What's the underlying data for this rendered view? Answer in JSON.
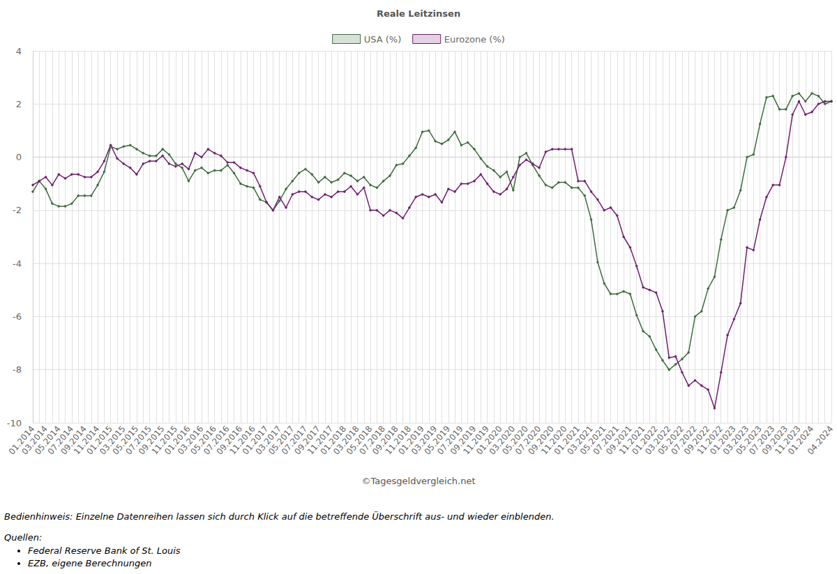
{
  "chart_data": {
    "type": "line",
    "title": "Reale Leitzinsen",
    "source_note": "©Tagesgeldvergleich.net",
    "categories": [
      "01.2014",
      null,
      "03.2014",
      null,
      "05.2014",
      null,
      "07.2014",
      null,
      "09.2014",
      null,
      "11.2014",
      null,
      "01.2015",
      null,
      "03.2015",
      null,
      "05.2015",
      null,
      "07.2015",
      null,
      "09.2015",
      null,
      "11.2015",
      null,
      "01.2016",
      null,
      "03.2016",
      null,
      "05.2016",
      null,
      "07.2016",
      null,
      "09.2016",
      null,
      "11.2016",
      null,
      "01.2017",
      null,
      "03.2017",
      null,
      "05.2017",
      null,
      "07.2017",
      null,
      "09.2017",
      null,
      "11.2017",
      null,
      "01.2018",
      null,
      "03.2018",
      null,
      "05.2018",
      null,
      "07.2018",
      null,
      "09.2018",
      null,
      "11.2018",
      null,
      "01.2019",
      null,
      "03.2019",
      null,
      "05.2019",
      null,
      "07.2019",
      null,
      "09.2019",
      null,
      "11.2019",
      null,
      "01.2020",
      null,
      "03.2020",
      null,
      "05.2020",
      null,
      "07.2020",
      null,
      "09.2020",
      null,
      "11.2020",
      null,
      "01.2021",
      null,
      "03.2021",
      null,
      "05.2021",
      null,
      "07.2021",
      null,
      "09.2021",
      null,
      "11.2021",
      null,
      "01.2022",
      null,
      "03.2022",
      null,
      "05.2022",
      null,
      "07.2022",
      null,
      "09.2022",
      null,
      "11.2022",
      null,
      "01.2023",
      null,
      "03.2023",
      null,
      "05.2023",
      null,
      "07.2023",
      null,
      "09.2023",
      null,
      "11.2023",
      null,
      "01.2024",
      null,
      null,
      "04.2024"
    ],
    "series": [
      {
        "name": "USA (%)",
        "color": "#3d6b3d",
        "marker": "circle",
        "values": [
          -1.3,
          -0.9,
          -1.2,
          -1.75,
          -1.85,
          -1.85,
          -1.75,
          -1.45,
          -1.45,
          -1.45,
          -1.05,
          -0.55,
          0.4,
          0.3,
          0.4,
          0.45,
          0.3,
          0.15,
          0.05,
          0.05,
          0.3,
          0.1,
          -0.25,
          -0.4,
          -0.9,
          -0.5,
          -0.4,
          -0.6,
          -0.5,
          -0.5,
          -0.3,
          -0.6,
          -1.0,
          -1.1,
          -1.15,
          -1.6,
          -1.7,
          -2.0,
          -1.65,
          -1.2,
          -0.9,
          -0.6,
          -0.45,
          -0.65,
          -0.95,
          -0.75,
          -0.95,
          -0.85,
          -0.6,
          -0.7,
          -0.9,
          -0.75,
          -1.05,
          -1.15,
          -0.9,
          -0.7,
          -0.3,
          -0.25,
          0.05,
          0.35,
          0.95,
          1.0,
          0.6,
          0.5,
          0.65,
          0.95,
          0.45,
          0.55,
          0.3,
          -0.05,
          -0.35,
          -0.5,
          -0.75,
          -0.55,
          -1.25,
          0.0,
          0.15,
          -0.3,
          -0.7,
          -1.05,
          -1.15,
          -0.95,
          -0.95,
          -1.15,
          -1.15,
          -1.45,
          -2.35,
          -3.95,
          -4.75,
          -5.15,
          -5.15,
          -5.05,
          -5.15,
          -5.95,
          -6.55,
          -6.75,
          -7.25,
          -7.65,
          -8.0,
          -7.8,
          -7.6,
          -7.35,
          -6.0,
          -5.8,
          -4.95,
          -4.5,
          -3.1,
          -2.0,
          -1.9,
          -1.25,
          0.0,
          0.1,
          1.25,
          2.25,
          2.3,
          1.8,
          1.8,
          2.3,
          2.4,
          2.1,
          2.4,
          2.3,
          2.0,
          2.1
        ]
      },
      {
        "name": "Eurozone (%)",
        "color": "#6e1e6e",
        "marker": "circle",
        "values": [
          -1.05,
          -0.9,
          -0.75,
          -1.05,
          -0.65,
          -0.8,
          -0.65,
          -0.65,
          -0.75,
          -0.75,
          -0.55,
          -0.15,
          0.45,
          -0.05,
          -0.25,
          -0.4,
          -0.65,
          -0.25,
          -0.15,
          -0.15,
          0.05,
          -0.25,
          -0.35,
          -0.25,
          -0.45,
          0.15,
          0.0,
          0.3,
          0.15,
          0.05,
          -0.2,
          -0.2,
          -0.4,
          -0.5,
          -0.6,
          -1.1,
          -1.7,
          -2.0,
          -1.5,
          -1.9,
          -1.4,
          -1.3,
          -1.3,
          -1.5,
          -1.6,
          -1.4,
          -1.5,
          -1.3,
          -1.3,
          -1.1,
          -1.4,
          -1.15,
          -2.0,
          -2.0,
          -2.2,
          -2.0,
          -2.1,
          -2.3,
          -1.9,
          -1.5,
          -1.4,
          -1.5,
          -1.4,
          -1.7,
          -1.2,
          -1.3,
          -1.0,
          -1.0,
          -0.9,
          -0.65,
          -1.0,
          -1.3,
          -1.4,
          -1.2,
          -0.75,
          -0.3,
          -0.1,
          -0.25,
          -0.4,
          0.2,
          0.3,
          0.3,
          0.3,
          0.3,
          -0.9,
          -0.9,
          -1.3,
          -1.6,
          -2.0,
          -1.9,
          -2.2,
          -3.0,
          -3.4,
          -4.1,
          -4.9,
          -5.0,
          -5.1,
          -5.8,
          -7.55,
          -7.5,
          -8.1,
          -8.6,
          -8.4,
          -8.6,
          -8.75,
          -9.45,
          -8.1,
          -6.7,
          -6.1,
          -5.5,
          -3.4,
          -3.5,
          -2.35,
          -1.5,
          -1.05,
          -1.05,
          0.0,
          1.6,
          2.1,
          1.6,
          1.7,
          2.0,
          2.1,
          2.1
        ]
      }
    ],
    "ylim": [
      -10,
      4
    ],
    "yticks": [
      -10,
      -8,
      -6,
      -4,
      -2,
      0,
      2,
      4
    ],
    "grid": true,
    "legend": "top"
  },
  "footer": {
    "hint": "Bedienhinweis: Einzelne Datenreihen lassen sich durch Klick auf die betreffende Überschrift aus- und wieder einblenden.",
    "sources_heading": "Quellen:",
    "sources": [
      "Federal Reserve Bank of St. Louis",
      "EZB, eigene Berechnungen"
    ]
  }
}
